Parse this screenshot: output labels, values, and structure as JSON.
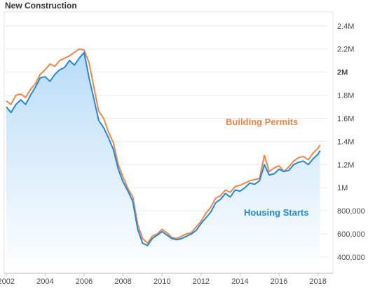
{
  "title": "New Construction",
  "chart_data": {
    "type": "line",
    "title": "New Construction",
    "xlabel": "",
    "ylabel": "",
    "xlim": [
      2001.9,
      2018.3
    ],
    "ylim": [
      260000,
      2520000
    ],
    "x_ticks": [
      2002,
      2004,
      2006,
      2008,
      2010,
      2012,
      2014,
      2016,
      2018
    ],
    "x_tick_labels": [
      "2002",
      "2004",
      "2006",
      "2008",
      "2010",
      "2012",
      "2014",
      "2016",
      "2018"
    ],
    "y_ticks": [
      400000,
      600000,
      800000,
      1000000,
      1200000,
      1400000,
      1600000,
      1800000,
      2000000,
      2200000,
      2400000
    ],
    "y_tick_labels": [
      "400,000",
      "600,000",
      "800,000",
      "1M",
      "1.2M",
      "1.4M",
      "1.6M",
      "1.8M",
      "2M",
      "2.2M",
      "2.4M"
    ],
    "grid": true,
    "legend": "none",
    "series": [
      {
        "name": "Building Permits",
        "color": "#f5853f",
        "x": [
          2002.0,
          2002.25,
          2002.5,
          2002.75,
          2003.0,
          2003.25,
          2003.5,
          2003.75,
          2004.0,
          2004.25,
          2004.5,
          2004.75,
          2005.0,
          2005.25,
          2005.5,
          2005.75,
          2006.0,
          2006.25,
          2006.5,
          2006.75,
          2007.0,
          2007.25,
          2007.5,
          2007.75,
          2008.0,
          2008.25,
          2008.5,
          2008.75,
          2009.0,
          2009.25,
          2009.5,
          2009.75,
          2010.0,
          2010.25,
          2010.5,
          2010.75,
          2011.0,
          2011.25,
          2011.5,
          2011.75,
          2012.0,
          2012.25,
          2012.5,
          2012.75,
          2013.0,
          2013.25,
          2013.5,
          2013.75,
          2014.0,
          2014.25,
          2014.5,
          2014.75,
          2015.0,
          2015.25,
          2015.5,
          2015.75,
          2016.0,
          2016.25,
          2016.5,
          2016.75,
          2017.0,
          2017.25,
          2017.5,
          2017.75,
          2018.0,
          2018.1
        ],
        "y": [
          1750000,
          1720000,
          1800000,
          1810000,
          1780000,
          1850000,
          1900000,
          1980000,
          2020000,
          2070000,
          2050000,
          2100000,
          2120000,
          2140000,
          2170000,
          2200000,
          2190000,
          2080000,
          1870000,
          1660000,
          1600000,
          1480000,
          1390000,
          1200000,
          1090000,
          990000,
          920000,
          680000,
          560000,
          520000,
          580000,
          600000,
          640000,
          610000,
          570000,
          560000,
          580000,
          600000,
          610000,
          660000,
          710000,
          780000,
          830000,
          910000,
          930000,
          980000,
          960000,
          1010000,
          1020000,
          1040000,
          1060000,
          1070000,
          1080000,
          1280000,
          1140000,
          1170000,
          1190000,
          1140000,
          1180000,
          1230000,
          1260000,
          1270000,
          1240000,
          1300000,
          1340000,
          1370000
        ]
      },
      {
        "name": "Housing Starts",
        "color": "#1f88e8",
        "x": [
          2002.0,
          2002.25,
          2002.5,
          2002.75,
          2003.0,
          2003.25,
          2003.5,
          2003.75,
          2004.0,
          2004.25,
          2004.5,
          2004.75,
          2005.0,
          2005.25,
          2005.5,
          2005.75,
          2006.0,
          2006.25,
          2006.5,
          2006.75,
          2007.0,
          2007.25,
          2007.5,
          2007.75,
          2008.0,
          2008.25,
          2008.5,
          2008.75,
          2009.0,
          2009.25,
          2009.5,
          2009.75,
          2010.0,
          2010.25,
          2010.5,
          2010.75,
          2011.0,
          2011.25,
          2011.5,
          2011.75,
          2012.0,
          2012.25,
          2012.5,
          2012.75,
          2013.0,
          2013.25,
          2013.5,
          2013.75,
          2014.0,
          2014.25,
          2014.5,
          2014.75,
          2015.0,
          2015.25,
          2015.5,
          2015.75,
          2016.0,
          2016.25,
          2016.5,
          2016.75,
          2017.0,
          2017.25,
          2017.5,
          2017.75,
          2018.0,
          2018.1
        ],
        "y": [
          1700000,
          1650000,
          1720000,
          1760000,
          1720000,
          1800000,
          1870000,
          1950000,
          1960000,
          1920000,
          1980000,
          2020000,
          2040000,
          2100000,
          2060000,
          2120000,
          2170000,
          1950000,
          1770000,
          1580000,
          1520000,
          1430000,
          1330000,
          1160000,
          1050000,
          970000,
          880000,
          640000,
          520000,
          500000,
          560000,
          590000,
          620000,
          590000,
          560000,
          550000,
          560000,
          580000,
          600000,
          630000,
          690000,
          740000,
          790000,
          870000,
          900000,
          950000,
          920000,
          980000,
          970000,
          1000000,
          1040000,
          1030000,
          1060000,
          1200000,
          1110000,
          1120000,
          1160000,
          1140000,
          1150000,
          1200000,
          1220000,
          1230000,
          1200000,
          1250000,
          1290000,
          1320000
        ]
      }
    ],
    "annotations": [
      "Building Permits",
      "Housing Starts"
    ]
  }
}
